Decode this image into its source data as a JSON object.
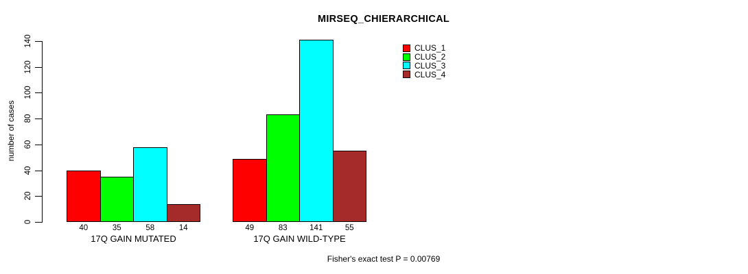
{
  "title": "MIRSEQ_CHIERARCHICAL",
  "footer": "Fisher's exact test P = 0.00769",
  "chart_data": {
    "type": "bar",
    "title": "MIRSEQ_CHIERARCHICAL",
    "xlabel": "",
    "ylabel": "number of cases",
    "ylim": [
      0,
      140
    ],
    "yticks": [
      0,
      20,
      40,
      60,
      80,
      100,
      120,
      140
    ],
    "grid": false,
    "legend_position": "top-right",
    "bar_value_labels_shown": true,
    "categories": [
      "17Q GAIN MUTATED",
      "17Q GAIN WILD-TYPE"
    ],
    "series": [
      {
        "name": "CLUS_1",
        "color": "#ff0000",
        "values": [
          40,
          49
        ]
      },
      {
        "name": "CLUS_2",
        "color": "#00ff00",
        "values": [
          35,
          83
        ]
      },
      {
        "name": "CLUS_3",
        "color": "#00ffff",
        "values": [
          58,
          141
        ]
      },
      {
        "name": "CLUS_4",
        "color": "#a52a2a",
        "values": [
          14,
          55
        ]
      }
    ],
    "annotation": "Fisher's exact test P = 0.00769"
  }
}
